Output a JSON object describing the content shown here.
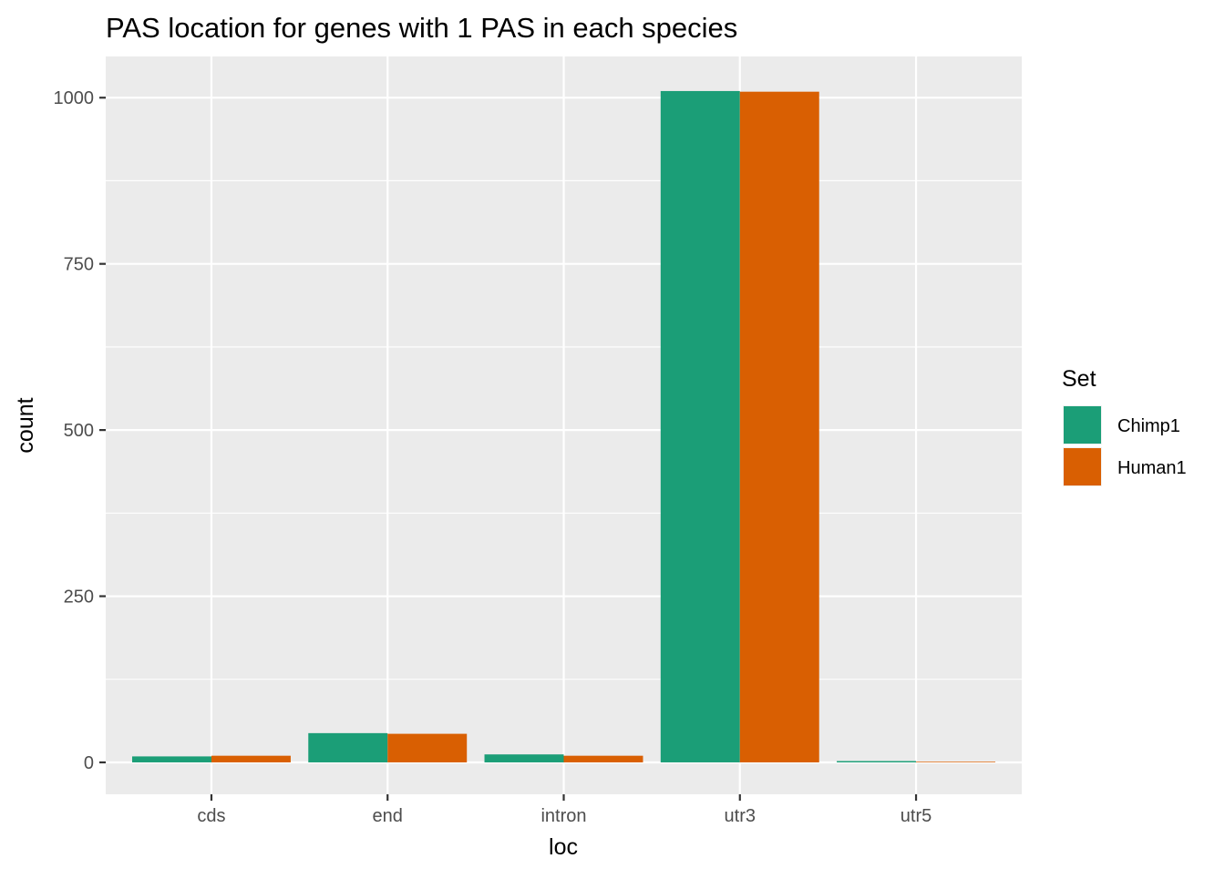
{
  "chart_data": {
    "type": "bar",
    "title": "PAS location for genes with 1 PAS in each species",
    "xlabel": "loc",
    "ylabel": "count",
    "categories": [
      "cds",
      "end",
      "intron",
      "utr3",
      "utr5"
    ],
    "series": [
      {
        "name": "Chimp1",
        "color": "#1b9e77",
        "values": [
          9,
          44,
          12,
          1010,
          2
        ]
      },
      {
        "name": "Human1",
        "color": "#d95f02",
        "values": [
          10,
          43,
          10,
          1009,
          1
        ]
      }
    ],
    "ylim": [
      -48,
      1062
    ],
    "yticks": [
      0,
      250,
      500,
      750,
      1000
    ],
    "ytick_labels": [
      "0",
      "250",
      "500",
      "750",
      "1000"
    ],
    "grid": true,
    "legend": {
      "title": "Set",
      "position": "right"
    },
    "panel_background": "#ebebeb",
    "grid_color": "#ffffff"
  }
}
